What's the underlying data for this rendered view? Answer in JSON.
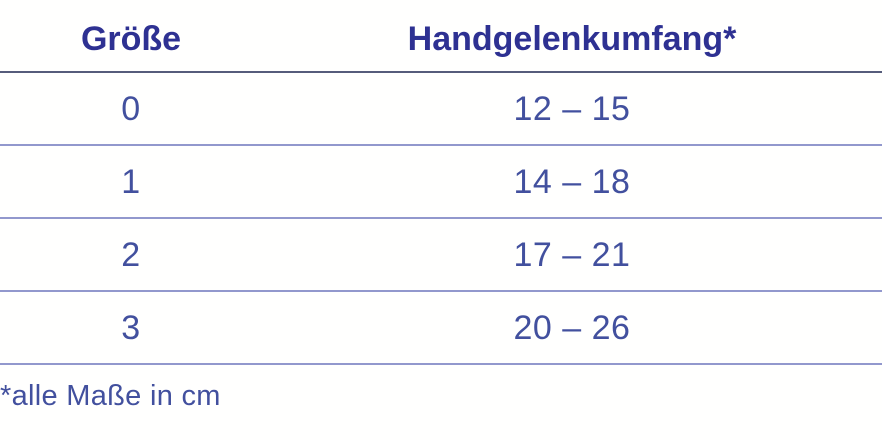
{
  "chart_data": {
    "type": "table",
    "title": "",
    "columns": [
      "Größe",
      "Handgelenkumfang*"
    ],
    "rows": [
      [
        "0",
        "12 – 15"
      ],
      [
        "1",
        "14 – 18"
      ],
      [
        "2",
        "17 – 21"
      ],
      [
        "3",
        "20 – 26"
      ]
    ],
    "footnote": "*alle Maße in cm",
    "units": "cm"
  },
  "colors": {
    "header_text": "#2e3192",
    "body_text": "#42509e",
    "header_rule": "#565c7b",
    "row_rule": "#9298cd",
    "background": "#fffffe"
  }
}
